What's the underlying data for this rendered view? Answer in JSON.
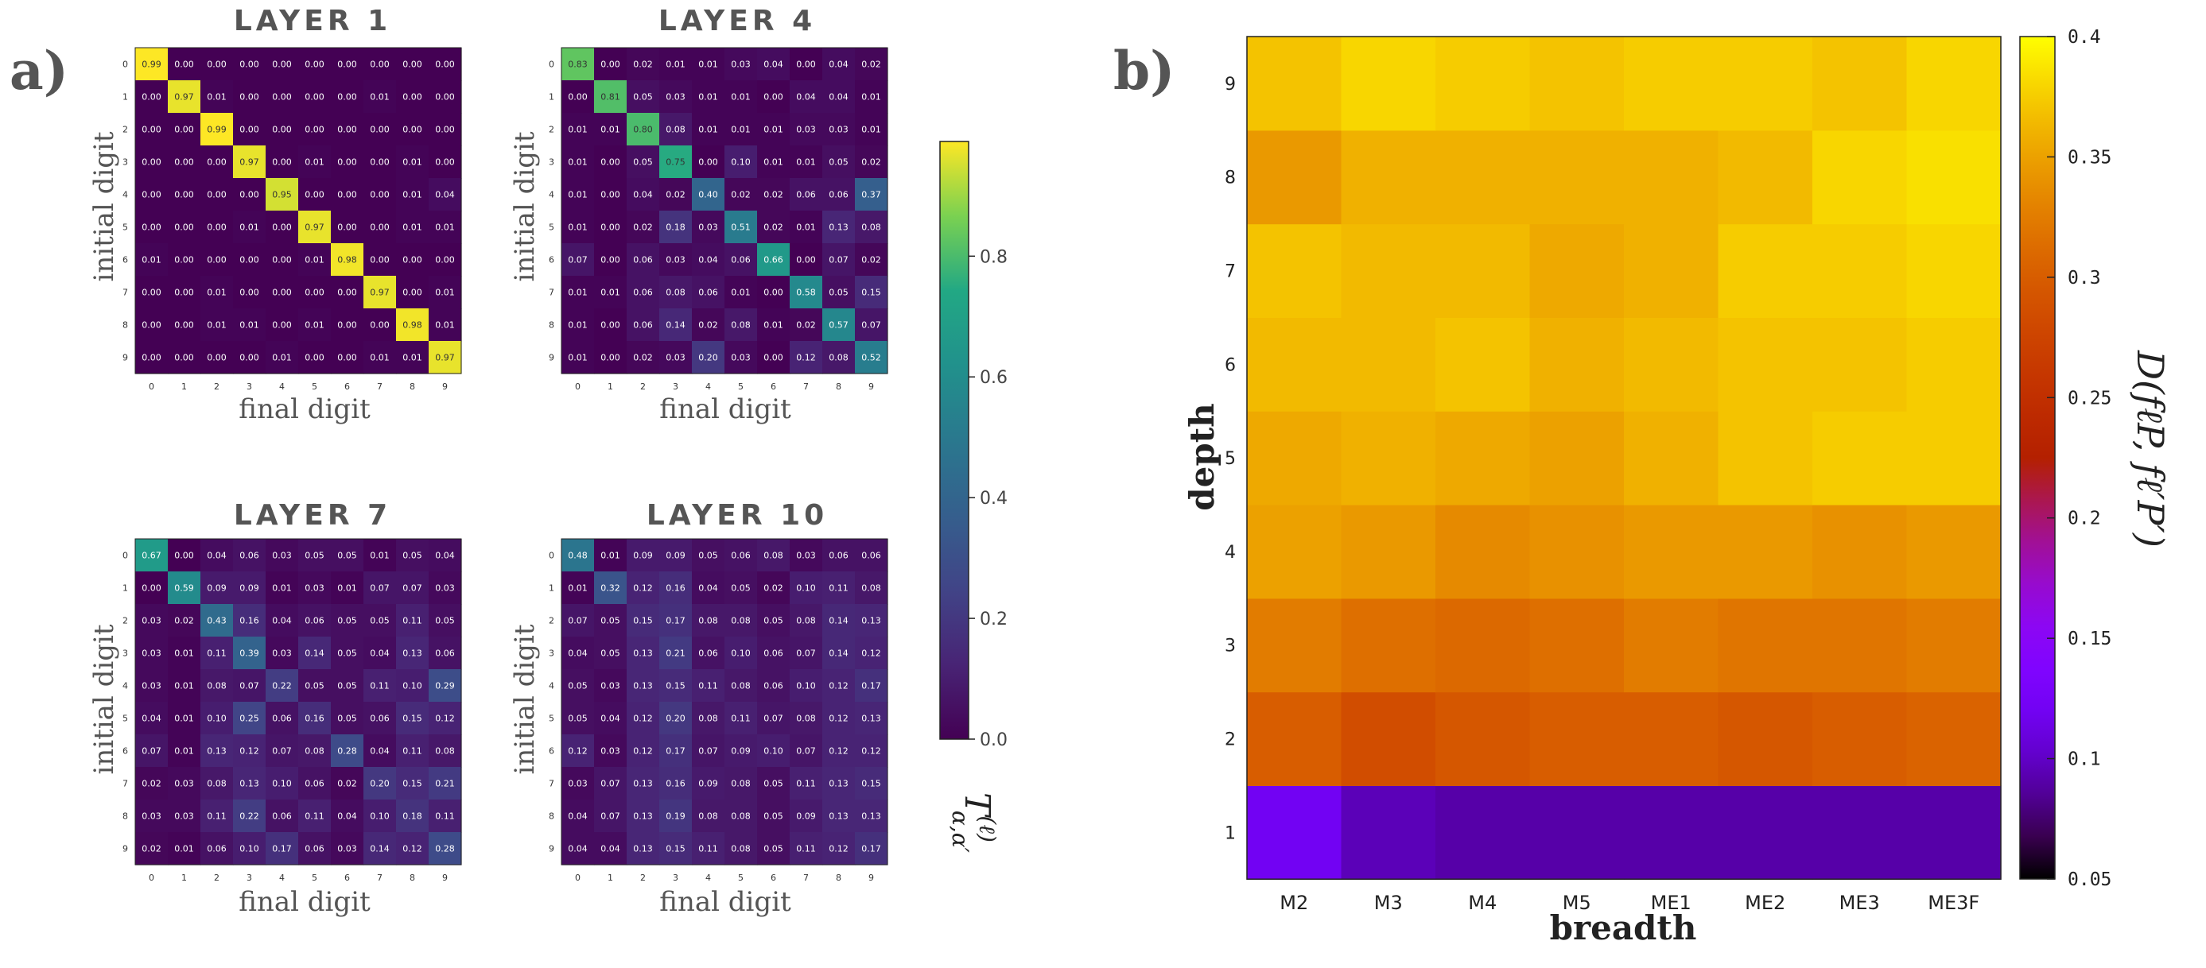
{
  "panel_a_label": "a)",
  "panel_b_label": "b)",
  "chart_data": [
    {
      "type": "heatmap",
      "title": "LAYER 1",
      "xlabel": "final digit",
      "ylabel": "initial digit",
      "x": [
        "0",
        "1",
        "2",
        "3",
        "4",
        "5",
        "6",
        "7",
        "8",
        "9"
      ],
      "y": [
        "0",
        "1",
        "2",
        "3",
        "4",
        "5",
        "6",
        "7",
        "8",
        "9"
      ],
      "values": [
        [
          0.99,
          0.0,
          0.0,
          0.0,
          0.0,
          0.0,
          0.0,
          0.0,
          0.0,
          0.0
        ],
        [
          0.0,
          0.97,
          0.01,
          0.0,
          0.0,
          0.0,
          0.0,
          0.01,
          0.0,
          0.0
        ],
        [
          0.0,
          0.0,
          0.99,
          0.0,
          0.0,
          0.0,
          0.0,
          0.0,
          0.0,
          0.0
        ],
        [
          0.0,
          0.0,
          0.0,
          0.97,
          0.0,
          0.01,
          0.0,
          0.0,
          0.01,
          0.0
        ],
        [
          0.0,
          0.0,
          0.0,
          0.0,
          0.95,
          0.0,
          0.0,
          0.0,
          0.01,
          0.04
        ],
        [
          0.0,
          0.0,
          0.0,
          0.01,
          0.0,
          0.97,
          0.0,
          0.0,
          0.01,
          0.01
        ],
        [
          0.01,
          0.0,
          0.0,
          0.0,
          0.0,
          0.01,
          0.98,
          0.0,
          0.0,
          0.0
        ],
        [
          0.0,
          0.0,
          0.01,
          0.0,
          0.0,
          0.0,
          0.0,
          0.97,
          0.0,
          0.01
        ],
        [
          0.0,
          0.0,
          0.01,
          0.01,
          0.0,
          0.01,
          0.0,
          0.0,
          0.98,
          0.01
        ],
        [
          0.0,
          0.0,
          0.0,
          0.0,
          0.01,
          0.0,
          0.0,
          0.01,
          0.01,
          0.97
        ]
      ]
    },
    {
      "type": "heatmap",
      "title": "LAYER 4",
      "xlabel": "final digit",
      "ylabel": "initial digit",
      "x": [
        "0",
        "1",
        "2",
        "3",
        "4",
        "5",
        "6",
        "7",
        "8",
        "9"
      ],
      "y": [
        "0",
        "1",
        "2",
        "3",
        "4",
        "5",
        "6",
        "7",
        "8",
        "9"
      ],
      "values": [
        [
          0.83,
          0.0,
          0.02,
          0.01,
          0.01,
          0.03,
          0.04,
          0.0,
          0.04,
          0.02
        ],
        [
          0.0,
          0.81,
          0.05,
          0.03,
          0.01,
          0.01,
          0.0,
          0.04,
          0.04,
          0.01
        ],
        [
          0.01,
          0.01,
          0.8,
          0.08,
          0.01,
          0.01,
          0.01,
          0.03,
          0.03,
          0.01
        ],
        [
          0.01,
          0.0,
          0.05,
          0.75,
          0.0,
          0.1,
          0.01,
          0.01,
          0.05,
          0.02
        ],
        [
          0.01,
          0.0,
          0.04,
          0.02,
          0.4,
          0.02,
          0.02,
          0.06,
          0.06,
          0.37
        ],
        [
          0.01,
          0.0,
          0.02,
          0.18,
          0.03,
          0.51,
          0.02,
          0.01,
          0.13,
          0.08
        ],
        [
          0.07,
          0.0,
          0.06,
          0.03,
          0.04,
          0.06,
          0.66,
          0.0,
          0.07,
          0.02
        ],
        [
          0.01,
          0.01,
          0.06,
          0.08,
          0.06,
          0.01,
          0.0,
          0.58,
          0.05,
          0.15
        ],
        [
          0.01,
          0.0,
          0.06,
          0.14,
          0.02,
          0.08,
          0.01,
          0.02,
          0.57,
          0.07
        ],
        [
          0.01,
          0.0,
          0.02,
          0.03,
          0.2,
          0.03,
          0.0,
          0.12,
          0.08,
          0.52
        ]
      ]
    },
    {
      "type": "heatmap",
      "title": "LAYER 7",
      "xlabel": "final digit",
      "ylabel": "initial digit",
      "x": [
        "0",
        "1",
        "2",
        "3",
        "4",
        "5",
        "6",
        "7",
        "8",
        "9"
      ],
      "y": [
        "0",
        "1",
        "2",
        "3",
        "4",
        "5",
        "6",
        "7",
        "8",
        "9"
      ],
      "values": [
        [
          0.67,
          0.0,
          0.04,
          0.06,
          0.03,
          0.05,
          0.05,
          0.01,
          0.05,
          0.04
        ],
        [
          0.0,
          0.59,
          0.09,
          0.09,
          0.01,
          0.03,
          0.01,
          0.07,
          0.07,
          0.03
        ],
        [
          0.03,
          0.02,
          0.43,
          0.16,
          0.04,
          0.06,
          0.05,
          0.05,
          0.11,
          0.05
        ],
        [
          0.03,
          0.01,
          0.11,
          0.39,
          0.03,
          0.14,
          0.05,
          0.04,
          0.13,
          0.06
        ],
        [
          0.03,
          0.01,
          0.08,
          0.07,
          0.22,
          0.05,
          0.05,
          0.11,
          0.1,
          0.29
        ],
        [
          0.04,
          0.01,
          0.1,
          0.25,
          0.06,
          0.16,
          0.05,
          0.06,
          0.15,
          0.12
        ],
        [
          0.07,
          0.01,
          0.13,
          0.12,
          0.07,
          0.08,
          0.28,
          0.04,
          0.11,
          0.08
        ],
        [
          0.02,
          0.03,
          0.08,
          0.13,
          0.1,
          0.06,
          0.02,
          0.2,
          0.15,
          0.21
        ],
        [
          0.03,
          0.03,
          0.11,
          0.22,
          0.06,
          0.11,
          0.04,
          0.1,
          0.18,
          0.11
        ],
        [
          0.02,
          0.01,
          0.06,
          0.1,
          0.17,
          0.06,
          0.03,
          0.14,
          0.12,
          0.28
        ]
      ]
    },
    {
      "type": "heatmap",
      "title": "LAYER 10",
      "xlabel": "final digit",
      "ylabel": "initial digit",
      "x": [
        "0",
        "1",
        "2",
        "3",
        "4",
        "5",
        "6",
        "7",
        "8",
        "9"
      ],
      "y": [
        "0",
        "1",
        "2",
        "3",
        "4",
        "5",
        "6",
        "7",
        "8",
        "9"
      ],
      "values": [
        [
          0.48,
          0.01,
          0.09,
          0.09,
          0.05,
          0.06,
          0.08,
          0.03,
          0.06,
          0.06
        ],
        [
          0.01,
          0.32,
          0.12,
          0.16,
          0.04,
          0.05,
          0.02,
          0.1,
          0.11,
          0.08
        ],
        [
          0.07,
          0.05,
          0.15,
          0.17,
          0.08,
          0.08,
          0.05,
          0.08,
          0.14,
          0.13
        ],
        [
          0.04,
          0.05,
          0.13,
          0.21,
          0.06,
          0.1,
          0.06,
          0.07,
          0.14,
          0.12
        ],
        [
          0.05,
          0.03,
          0.13,
          0.15,
          0.11,
          0.08,
          0.06,
          0.1,
          0.12,
          0.17
        ],
        [
          0.05,
          0.04,
          0.12,
          0.2,
          0.08,
          0.11,
          0.07,
          0.08,
          0.12,
          0.13
        ],
        [
          0.12,
          0.03,
          0.12,
          0.17,
          0.07,
          0.09,
          0.1,
          0.07,
          0.12,
          0.12
        ],
        [
          0.03,
          0.07,
          0.13,
          0.16,
          0.09,
          0.08,
          0.05,
          0.11,
          0.13,
          0.15
        ],
        [
          0.04,
          0.07,
          0.13,
          0.19,
          0.08,
          0.08,
          0.05,
          0.09,
          0.13,
          0.13
        ],
        [
          0.04,
          0.04,
          0.13,
          0.15,
          0.11,
          0.08,
          0.05,
          0.11,
          0.12,
          0.17
        ]
      ]
    },
    {
      "type": "heatmap",
      "xlabel": "breadth",
      "ylabel": "depth",
      "x": [
        "M2",
        "M3",
        "M4",
        "M5",
        "ME1",
        "ME2",
        "ME3",
        "ME3F"
      ],
      "y": [
        "1",
        "2",
        "3",
        "4",
        "5",
        "6",
        "7",
        "8",
        "9"
      ],
      "values": [
        [
          0.12,
          0.095,
          0.09,
          0.09,
          0.09,
          0.09,
          0.09,
          0.09
        ],
        [
          0.3,
          0.285,
          0.295,
          0.3,
          0.3,
          0.295,
          0.3,
          0.305
        ],
        [
          0.325,
          0.315,
          0.31,
          0.315,
          0.325,
          0.32,
          0.32,
          0.325
        ],
        [
          0.35,
          0.345,
          0.335,
          0.34,
          0.345,
          0.345,
          0.34,
          0.345
        ],
        [
          0.355,
          0.36,
          0.355,
          0.35,
          0.36,
          0.37,
          0.375,
          0.375
        ],
        [
          0.365,
          0.365,
          0.37,
          0.36,
          0.365,
          0.37,
          0.37,
          0.375
        ],
        [
          0.37,
          0.365,
          0.365,
          0.355,
          0.36,
          0.375,
          0.375,
          0.38
        ],
        [
          0.345,
          0.36,
          0.36,
          0.36,
          0.36,
          0.365,
          0.38,
          0.385
        ],
        [
          0.37,
          0.38,
          0.375,
          0.37,
          0.375,
          0.375,
          0.37,
          0.38
        ]
      ],
      "zlim": [
        0.05,
        0.4
      ],
      "colormap": "gnuplot-pm3d"
    }
  ],
  "colorbar_a": {
    "range": [
      0,
      0.99
    ],
    "ticks": [
      "0.0",
      "0.2",
      "0.4",
      "0.6",
      "0.8"
    ],
    "tick_values": [
      0,
      0.2,
      0.4,
      0.6,
      0.8
    ],
    "label_main": "T",
    "label_sup": "(ℓ)",
    "label_sub": "α,α′",
    "colormap": "viridis"
  },
  "colorbar_b": {
    "range": [
      0.05,
      0.4
    ],
    "ticks": [
      "0.05",
      "0.1",
      "0.15",
      "0.2",
      "0.25",
      "0.3",
      "0.35",
      "0.4"
    ],
    "tick_values": [
      0.05,
      0.1,
      0.15,
      0.2,
      0.25,
      0.3,
      0.35,
      0.4
    ],
    "label": "D(fℓP, fℓ′P′)"
  }
}
